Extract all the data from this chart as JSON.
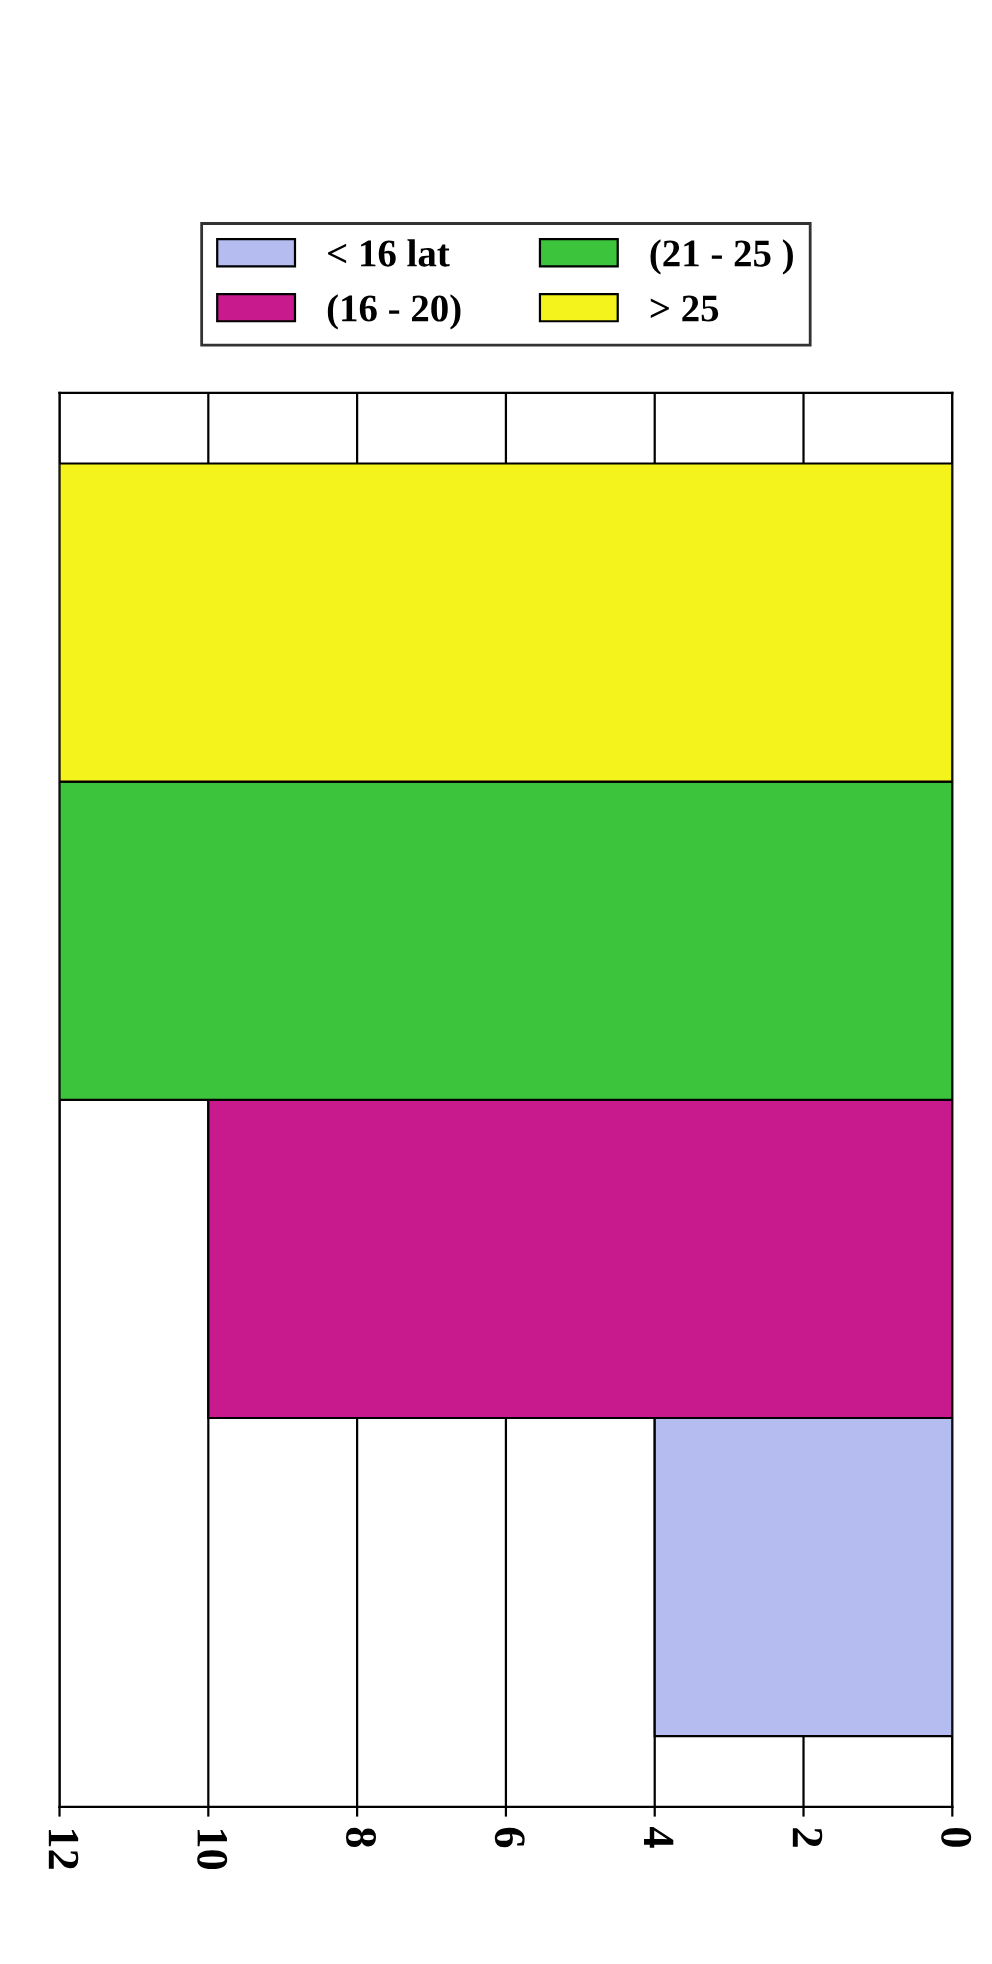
{
  "chart_data": {
    "type": "bar",
    "orientation": "horizontal",
    "categories": [
      null
    ],
    "series": [
      {
        "name": "< 16 lat",
        "color": "#b4bcf0",
        "values": [
          4
        ]
      },
      {
        "name": "(16 - 20)",
        "color": "#c81a8c",
        "values": [
          10
        ]
      },
      {
        "name": "(21 - 25 )",
        "color": "#3cc43c",
        "values": [
          12
        ]
      },
      {
        "name": "> 25",
        "color": "#f4f41c",
        "values": [
          12
        ]
      }
    ],
    "xlim": [
      12,
      0
    ],
    "xticks": [
      12,
      10,
      8,
      6,
      4,
      2,
      0
    ],
    "grid": "x",
    "legend": "top"
  }
}
